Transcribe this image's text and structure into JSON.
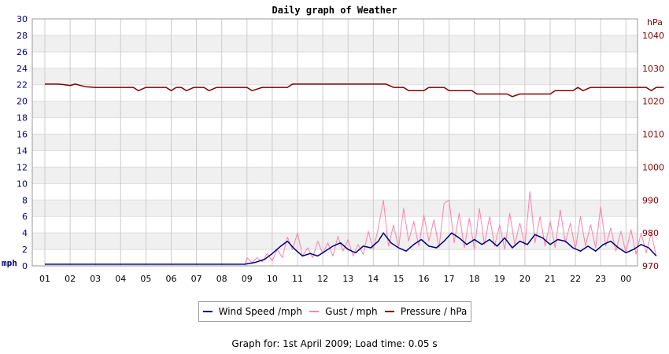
{
  "chart_data": {
    "type": "line",
    "title": "Daily graph of Weather",
    "ylabel_left": "mph",
    "ylabel_right": "hPa",
    "ylim_left": [
      0,
      30
    ],
    "ylim_right": [
      970,
      1045
    ],
    "yticks_left": [
      "0",
      "2",
      "4",
      "6",
      "8",
      "10",
      "12",
      "14",
      "16",
      "18",
      "20",
      "22",
      "24",
      "26",
      "28",
      "30"
    ],
    "yticks_right": [
      "970",
      "980",
      "990",
      "1000",
      "1010",
      "1020",
      "1030",
      "1040"
    ],
    "xticks": [
      "01",
      "02",
      "03",
      "04",
      "05",
      "06",
      "07",
      "08",
      "09",
      "10",
      "11",
      "12",
      "13",
      "14",
      "15",
      "16",
      "17",
      "18",
      "19",
      "20",
      "21",
      "22",
      "23",
      "00"
    ],
    "grid": true,
    "legend_placement": "bottom",
    "series": [
      {
        "name": "Wind Speed /mph",
        "color": "#000080",
        "axis": "left",
        "points": [
          [
            0,
            0.2
          ],
          [
            7.9,
            0.2
          ],
          [
            8.3,
            0.4
          ],
          [
            8.7,
            0.8
          ],
          [
            9.0,
            1.5
          ],
          [
            9.3,
            2.3
          ],
          [
            9.6,
            3.0
          ],
          [
            9.9,
            2.0
          ],
          [
            10.2,
            1.2
          ],
          [
            10.5,
            1.5
          ],
          [
            10.8,
            1.2
          ],
          [
            11.1,
            1.8
          ],
          [
            11.4,
            2.4
          ],
          [
            11.7,
            2.8
          ],
          [
            12.0,
            2.0
          ],
          [
            12.3,
            1.6
          ],
          [
            12.6,
            2.4
          ],
          [
            12.9,
            2.2
          ],
          [
            13.2,
            3.0
          ],
          [
            13.4,
            4.0
          ],
          [
            13.7,
            2.8
          ],
          [
            14.0,
            2.2
          ],
          [
            14.3,
            1.8
          ],
          [
            14.6,
            2.6
          ],
          [
            14.9,
            3.2
          ],
          [
            15.2,
            2.4
          ],
          [
            15.5,
            2.2
          ],
          [
            15.8,
            3.0
          ],
          [
            16.1,
            4.0
          ],
          [
            16.4,
            3.4
          ],
          [
            16.7,
            2.6
          ],
          [
            17.0,
            3.2
          ],
          [
            17.3,
            2.6
          ],
          [
            17.6,
            3.2
          ],
          [
            17.9,
            2.4
          ],
          [
            18.2,
            3.4
          ],
          [
            18.5,
            2.2
          ],
          [
            18.8,
            3.0
          ],
          [
            19.1,
            2.6
          ],
          [
            19.4,
            3.8
          ],
          [
            19.7,
            3.4
          ],
          [
            20.0,
            2.6
          ],
          [
            20.3,
            3.2
          ],
          [
            20.6,
            3.0
          ],
          [
            20.9,
            2.2
          ],
          [
            21.2,
            1.8
          ],
          [
            21.5,
            2.4
          ],
          [
            21.8,
            1.8
          ],
          [
            22.1,
            2.6
          ],
          [
            22.4,
            3.0
          ],
          [
            22.7,
            2.2
          ],
          [
            23.0,
            1.6
          ],
          [
            23.3,
            2.0
          ],
          [
            23.6,
            2.6
          ],
          [
            23.9,
            2.2
          ],
          [
            24.2,
            1.2
          ]
        ]
      },
      {
        "name": "Gust / mph",
        "color": "#ff82ab",
        "axis": "left",
        "points": [
          [
            7.9,
            0.0
          ],
          [
            8.0,
            1.0
          ],
          [
            8.2,
            0.4
          ],
          [
            8.4,
            1.0
          ],
          [
            8.6,
            0.5
          ],
          [
            8.8,
            1.5
          ],
          [
            9.0,
            0.6
          ],
          [
            9.2,
            2.0
          ],
          [
            9.4,
            1.0
          ],
          [
            9.6,
            3.5
          ],
          [
            9.8,
            2.0
          ],
          [
            10.0,
            4.0
          ],
          [
            10.2,
            1.2
          ],
          [
            10.4,
            2.2
          ],
          [
            10.6,
            1.0
          ],
          [
            10.8,
            3.0
          ],
          [
            11.0,
            1.5
          ],
          [
            11.2,
            2.8
          ],
          [
            11.4,
            1.2
          ],
          [
            11.6,
            3.6
          ],
          [
            11.8,
            1.8
          ],
          [
            12.0,
            3.2
          ],
          [
            12.2,
            1.2
          ],
          [
            12.4,
            2.6
          ],
          [
            12.6,
            1.4
          ],
          [
            12.8,
            4.2
          ],
          [
            13.0,
            2.0
          ],
          [
            13.2,
            4.6
          ],
          [
            13.4,
            8.0
          ],
          [
            13.6,
            2.4
          ],
          [
            13.8,
            5.0
          ],
          [
            14.0,
            2.2
          ],
          [
            14.2,
            7.0
          ],
          [
            14.4,
            3.0
          ],
          [
            14.6,
            5.4
          ],
          [
            14.8,
            2.4
          ],
          [
            15.0,
            6.2
          ],
          [
            15.2,
            3.0
          ],
          [
            15.4,
            5.6
          ],
          [
            15.6,
            2.2
          ],
          [
            15.8,
            7.6
          ],
          [
            16.0,
            8.0
          ],
          [
            16.2,
            2.8
          ],
          [
            16.4,
            6.4
          ],
          [
            16.6,
            2.2
          ],
          [
            16.8,
            5.8
          ],
          [
            17.0,
            2.0
          ],
          [
            17.2,
            7.0
          ],
          [
            17.4,
            2.6
          ],
          [
            17.6,
            6.0
          ],
          [
            17.8,
            2.4
          ],
          [
            18.0,
            5.0
          ],
          [
            18.2,
            2.0
          ],
          [
            18.4,
            6.4
          ],
          [
            18.6,
            2.6
          ],
          [
            18.8,
            5.2
          ],
          [
            19.0,
            2.4
          ],
          [
            19.2,
            9.0
          ],
          [
            19.4,
            2.8
          ],
          [
            19.6,
            6.0
          ],
          [
            19.8,
            2.4
          ],
          [
            20.0,
            5.4
          ],
          [
            20.2,
            2.2
          ],
          [
            20.4,
            6.8
          ],
          [
            20.6,
            2.8
          ],
          [
            20.8,
            5.2
          ],
          [
            21.0,
            2.0
          ],
          [
            21.2,
            6.0
          ],
          [
            21.4,
            2.4
          ],
          [
            21.6,
            5.0
          ],
          [
            21.8,
            2.2
          ],
          [
            22.0,
            7.2
          ],
          [
            22.2,
            2.4
          ],
          [
            22.4,
            4.6
          ],
          [
            22.6,
            1.8
          ],
          [
            22.8,
            4.2
          ],
          [
            23.0,
            1.6
          ],
          [
            23.2,
            4.4
          ],
          [
            23.4,
            1.4
          ],
          [
            23.6,
            4.0
          ],
          [
            23.8,
            1.6
          ],
          [
            24.0,
            4.0
          ],
          [
            24.2,
            1.2
          ]
        ]
      },
      {
        "name": "Pressure / hPa",
        "color": "#800000",
        "axis": "right",
        "points": [
          [
            0,
            1025.2
          ],
          [
            0.5,
            1025.2
          ],
          [
            0.8,
            1025.0
          ],
          [
            1.0,
            1024.8
          ],
          [
            1.2,
            1025.2
          ],
          [
            1.6,
            1024.4
          ],
          [
            2.0,
            1024.2
          ],
          [
            3.5,
            1024.2
          ],
          [
            3.7,
            1023.2
          ],
          [
            4.0,
            1024.2
          ],
          [
            4.8,
            1024.2
          ],
          [
            5.0,
            1023.2
          ],
          [
            5.2,
            1024.2
          ],
          [
            5.4,
            1024.2
          ],
          [
            5.6,
            1023.2
          ],
          [
            5.9,
            1024.2
          ],
          [
            6.3,
            1024.2
          ],
          [
            6.5,
            1023.2
          ],
          [
            6.8,
            1024.2
          ],
          [
            8.0,
            1024.2
          ],
          [
            8.2,
            1023.2
          ],
          [
            8.6,
            1024.2
          ],
          [
            9.6,
            1024.2
          ],
          [
            9.8,
            1025.2
          ],
          [
            13.5,
            1025.2
          ],
          [
            13.8,
            1024.2
          ],
          [
            14.2,
            1024.2
          ],
          [
            14.4,
            1023.2
          ],
          [
            15.0,
            1023.2
          ],
          [
            15.2,
            1024.2
          ],
          [
            15.8,
            1024.2
          ],
          [
            16.0,
            1023.2
          ],
          [
            16.9,
            1023.2
          ],
          [
            17.1,
            1022.2
          ],
          [
            18.3,
            1022.2
          ],
          [
            18.5,
            1021.4
          ],
          [
            18.8,
            1022.2
          ],
          [
            20.0,
            1022.2
          ],
          [
            20.2,
            1023.2
          ],
          [
            20.9,
            1023.2
          ],
          [
            21.1,
            1024.2
          ],
          [
            21.3,
            1023.2
          ],
          [
            21.6,
            1024.2
          ],
          [
            23.8,
            1024.2
          ],
          [
            24.0,
            1023.2
          ],
          [
            24.2,
            1024.2
          ],
          [
            24.5,
            1024.2
          ]
        ]
      }
    ]
  },
  "legend": {
    "wind": "Wind Speed /mph",
    "gust": "Gust / mph",
    "pressure": "Pressure / hPa"
  },
  "footer": "Graph for: 1st April 2009; Load time: 0.05 s"
}
